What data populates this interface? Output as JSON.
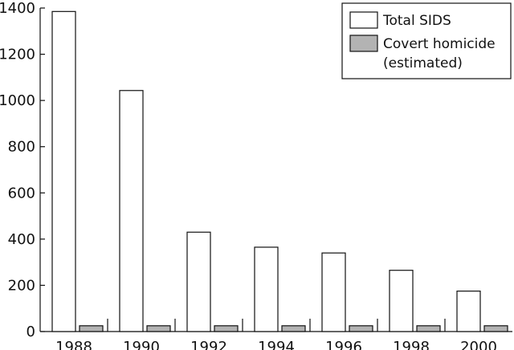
{
  "chart_data": {
    "type": "bar",
    "categories": [
      "1988",
      "1990",
      "1992",
      "1994",
      "1996",
      "1998",
      "2000"
    ],
    "series": [
      {
        "name": "Total SIDS",
        "values": [
          1385,
          1043,
          430,
          365,
          340,
          265,
          175
        ],
        "color": "#ffffff"
      },
      {
        "name": "Covert homicide",
        "name_line2": "(estimated)",
        "values": [
          25,
          25,
          25,
          25,
          25,
          25,
          25
        ],
        "color": "#b3b3b3"
      }
    ],
    "ylim": [
      0,
      1400
    ],
    "yticks": [
      "0",
      "200",
      "400",
      "600",
      "800",
      "1000",
      "1200",
      "1400"
    ],
    "grid": false,
    "legend": "top-right"
  }
}
